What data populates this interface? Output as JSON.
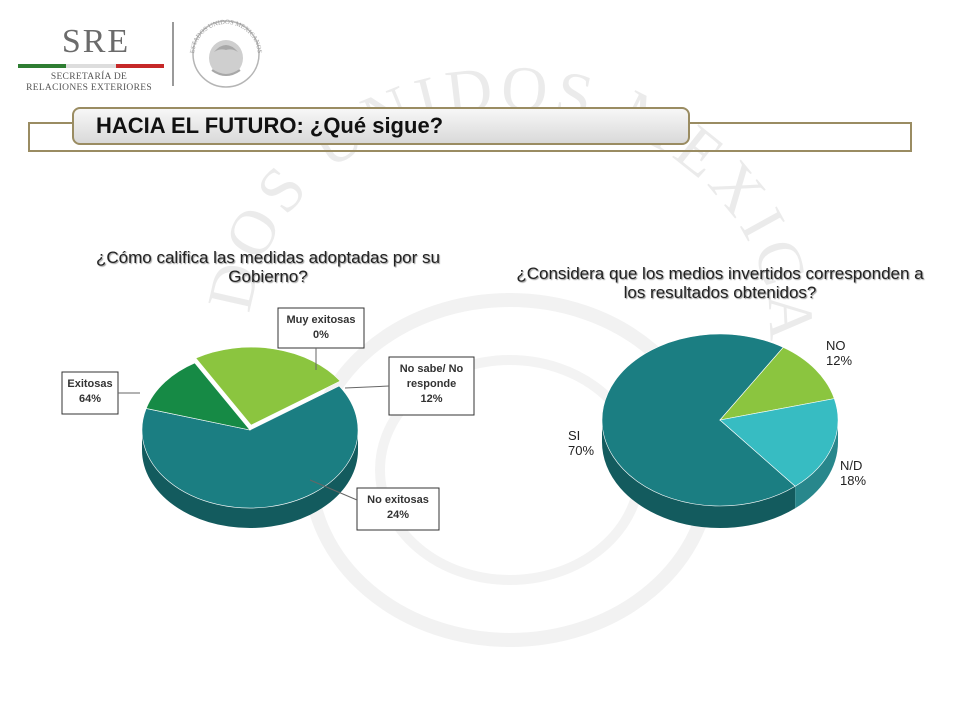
{
  "header": {
    "logo_text": "SRE",
    "logo_subtitle_1": "SECRETARÍA DE",
    "logo_subtitle_2": "RELACIONES EXTERIORES",
    "seal_text": "ESTADOS UNIDOS MEXICANOS",
    "watermark_text": "ESTADOS UNIDOS MEXICANOS",
    "title": "HACIA EL FUTURO: ¿Qué sigue?"
  },
  "colors": {
    "teal": "#1b7e82",
    "green_light": "#8bc53f",
    "green_dark": "#168a45",
    "cyan": "#37bcc2",
    "banner_border": "#9a8c62"
  },
  "chart_data": [
    {
      "type": "pie",
      "title": "¿Cómo califica las medidas adoptadas por su Gobierno?",
      "slices": [
        {
          "label_lines": [
            "Exitosas",
            "64%"
          ],
          "value": 64,
          "color": "#1b7e82"
        },
        {
          "label_lines": [
            "Muy exitosas",
            "0%"
          ],
          "value": 0,
          "color": "#168a45"
        },
        {
          "label_lines": [
            "No sabe/ No",
            "responde",
            "12%"
          ],
          "value": 12,
          "color": "#168a45"
        },
        {
          "label_lines": [
            "No exitosas",
            "24%"
          ],
          "value": 24,
          "color": "#8bc53f"
        }
      ]
    },
    {
      "type": "pie",
      "title": "¿Considera que los medios invertidos corresponden a los resultados obtenidos?",
      "slices": [
        {
          "label_lines": [
            "SI",
            "70%"
          ],
          "value": 70,
          "color": "#1b7e82"
        },
        {
          "label_lines": [
            "NO",
            "12%"
          ],
          "value": 12,
          "color": "#8bc53f"
        },
        {
          "label_lines": [
            "N/D",
            "18%"
          ],
          "value": 18,
          "color": "#37bcc2"
        }
      ]
    }
  ]
}
